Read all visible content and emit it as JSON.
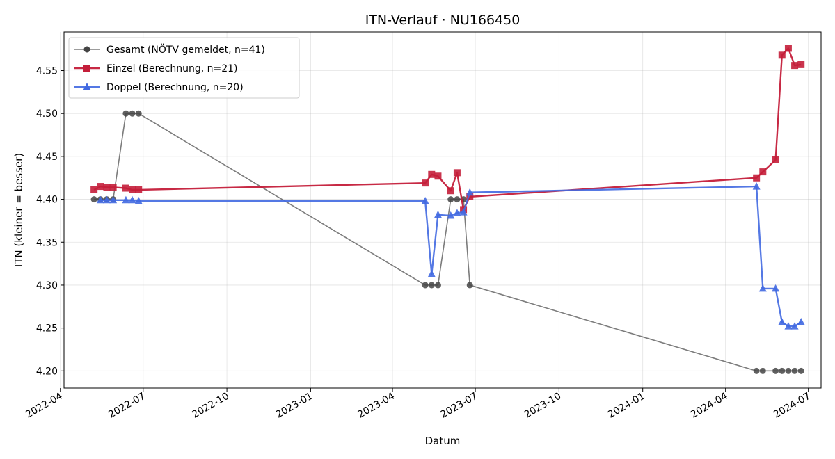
{
  "chart_data": {
    "type": "line",
    "title": "ITN-Verlauf · NU166450",
    "xlabel": "Datum",
    "ylabel": "ITN  (kleiner = besser)",
    "x_type": "date",
    "xlim": [
      "2022-04-05",
      "2024-07-15"
    ],
    "ylim": [
      4.18,
      4.595
    ],
    "x_ticks": [
      "2022-04-01",
      "2022-07-01",
      "2022-10-01",
      "2023-01-01",
      "2023-04-01",
      "2023-07-01",
      "2023-10-01",
      "2024-01-01",
      "2024-04-01",
      "2024-07-01"
    ],
    "x_tick_labels": [
      "2022-04",
      "2022-07",
      "2022-10",
      "2023-01",
      "2023-04",
      "2023-07",
      "2023-10",
      "2024-01",
      "2024-04",
      "2024-07"
    ],
    "y_ticks": [
      4.2,
      4.25,
      4.3,
      4.35,
      4.4,
      4.45,
      4.5,
      4.55
    ],
    "y_tick_labels": [
      "4.20",
      "4.25",
      "4.30",
      "4.35",
      "4.40",
      "4.45",
      "4.50",
      "4.55"
    ],
    "grid": true,
    "legend_position": "top-left",
    "series": [
      {
        "name": "Gesamt (NÖTV gemeldet, n=41)",
        "color": "#444444",
        "marker": "circle",
        "line_opacity": 0.7,
        "points": [
          [
            "2022-05-08",
            4.4
          ],
          [
            "2022-05-15",
            4.4
          ],
          [
            "2022-05-22",
            4.4
          ],
          [
            "2022-05-29",
            4.4
          ],
          [
            "2022-06-12",
            4.5
          ],
          [
            "2022-06-19",
            4.5
          ],
          [
            "2022-06-26",
            4.5
          ],
          [
            "2023-05-07",
            4.3
          ],
          [
            "2023-05-14",
            4.3
          ],
          [
            "2023-05-21",
            4.3
          ],
          [
            "2023-06-04",
            4.4
          ],
          [
            "2023-06-11",
            4.4
          ],
          [
            "2023-06-18",
            4.4
          ],
          [
            "2023-06-25",
            4.3
          ],
          [
            "2024-05-05",
            4.2
          ],
          [
            "2024-05-12",
            4.2
          ],
          [
            "2024-05-26",
            4.2
          ],
          [
            "2024-06-02",
            4.2
          ],
          [
            "2024-06-09",
            4.2
          ],
          [
            "2024-06-16",
            4.2
          ],
          [
            "2024-06-23",
            4.2
          ]
        ]
      },
      {
        "name": "Einzel (Berechnung, n=21)",
        "color": "#c41e3a",
        "marker": "square",
        "line_opacity": 0.95,
        "points": [
          [
            "2022-05-08",
            4.411
          ],
          [
            "2022-05-15",
            4.415
          ],
          [
            "2022-05-22",
            4.414
          ],
          [
            "2022-05-29",
            4.414
          ],
          [
            "2022-06-12",
            4.413
          ],
          [
            "2022-06-19",
            4.411
          ],
          [
            "2022-06-26",
            4.411
          ],
          [
            "2023-05-07",
            4.419
          ],
          [
            "2023-05-14",
            4.429
          ],
          [
            "2023-05-21",
            4.427
          ],
          [
            "2023-06-04",
            4.41
          ],
          [
            "2023-06-11",
            4.431
          ],
          [
            "2023-06-18",
            4.388
          ],
          [
            "2023-06-25",
            4.403
          ],
          [
            "2024-05-05",
            4.425
          ],
          [
            "2024-05-12",
            4.432
          ],
          [
            "2024-05-26",
            4.446
          ],
          [
            "2024-06-02",
            4.568
          ],
          [
            "2024-06-09",
            4.576
          ],
          [
            "2024-06-16",
            4.556
          ],
          [
            "2024-06-23",
            4.557
          ]
        ]
      },
      {
        "name": "Doppel (Berechnung, n=20)",
        "color": "#4169e1",
        "marker": "triangle",
        "line_opacity": 0.9,
        "points": [
          [
            "2022-05-15",
            4.399
          ],
          [
            "2022-05-22",
            4.399
          ],
          [
            "2022-05-29",
            4.399
          ],
          [
            "2022-06-12",
            4.399
          ],
          [
            "2022-06-19",
            4.399
          ],
          [
            "2022-06-26",
            4.398
          ],
          [
            "2023-05-07",
            4.398
          ],
          [
            "2023-05-14",
            4.313
          ],
          [
            "2023-05-21",
            4.382
          ],
          [
            "2023-06-04",
            4.381
          ],
          [
            "2023-06-11",
            4.384
          ],
          [
            "2023-06-18",
            4.385
          ],
          [
            "2023-06-25",
            4.408
          ],
          [
            "2024-05-05",
            4.415
          ],
          [
            "2024-05-12",
            4.296
          ],
          [
            "2024-05-26",
            4.296
          ],
          [
            "2024-06-02",
            4.257
          ],
          [
            "2024-06-09",
            4.252
          ],
          [
            "2024-06-16",
            4.252
          ],
          [
            "2024-06-23",
            4.257
          ]
        ]
      }
    ]
  }
}
